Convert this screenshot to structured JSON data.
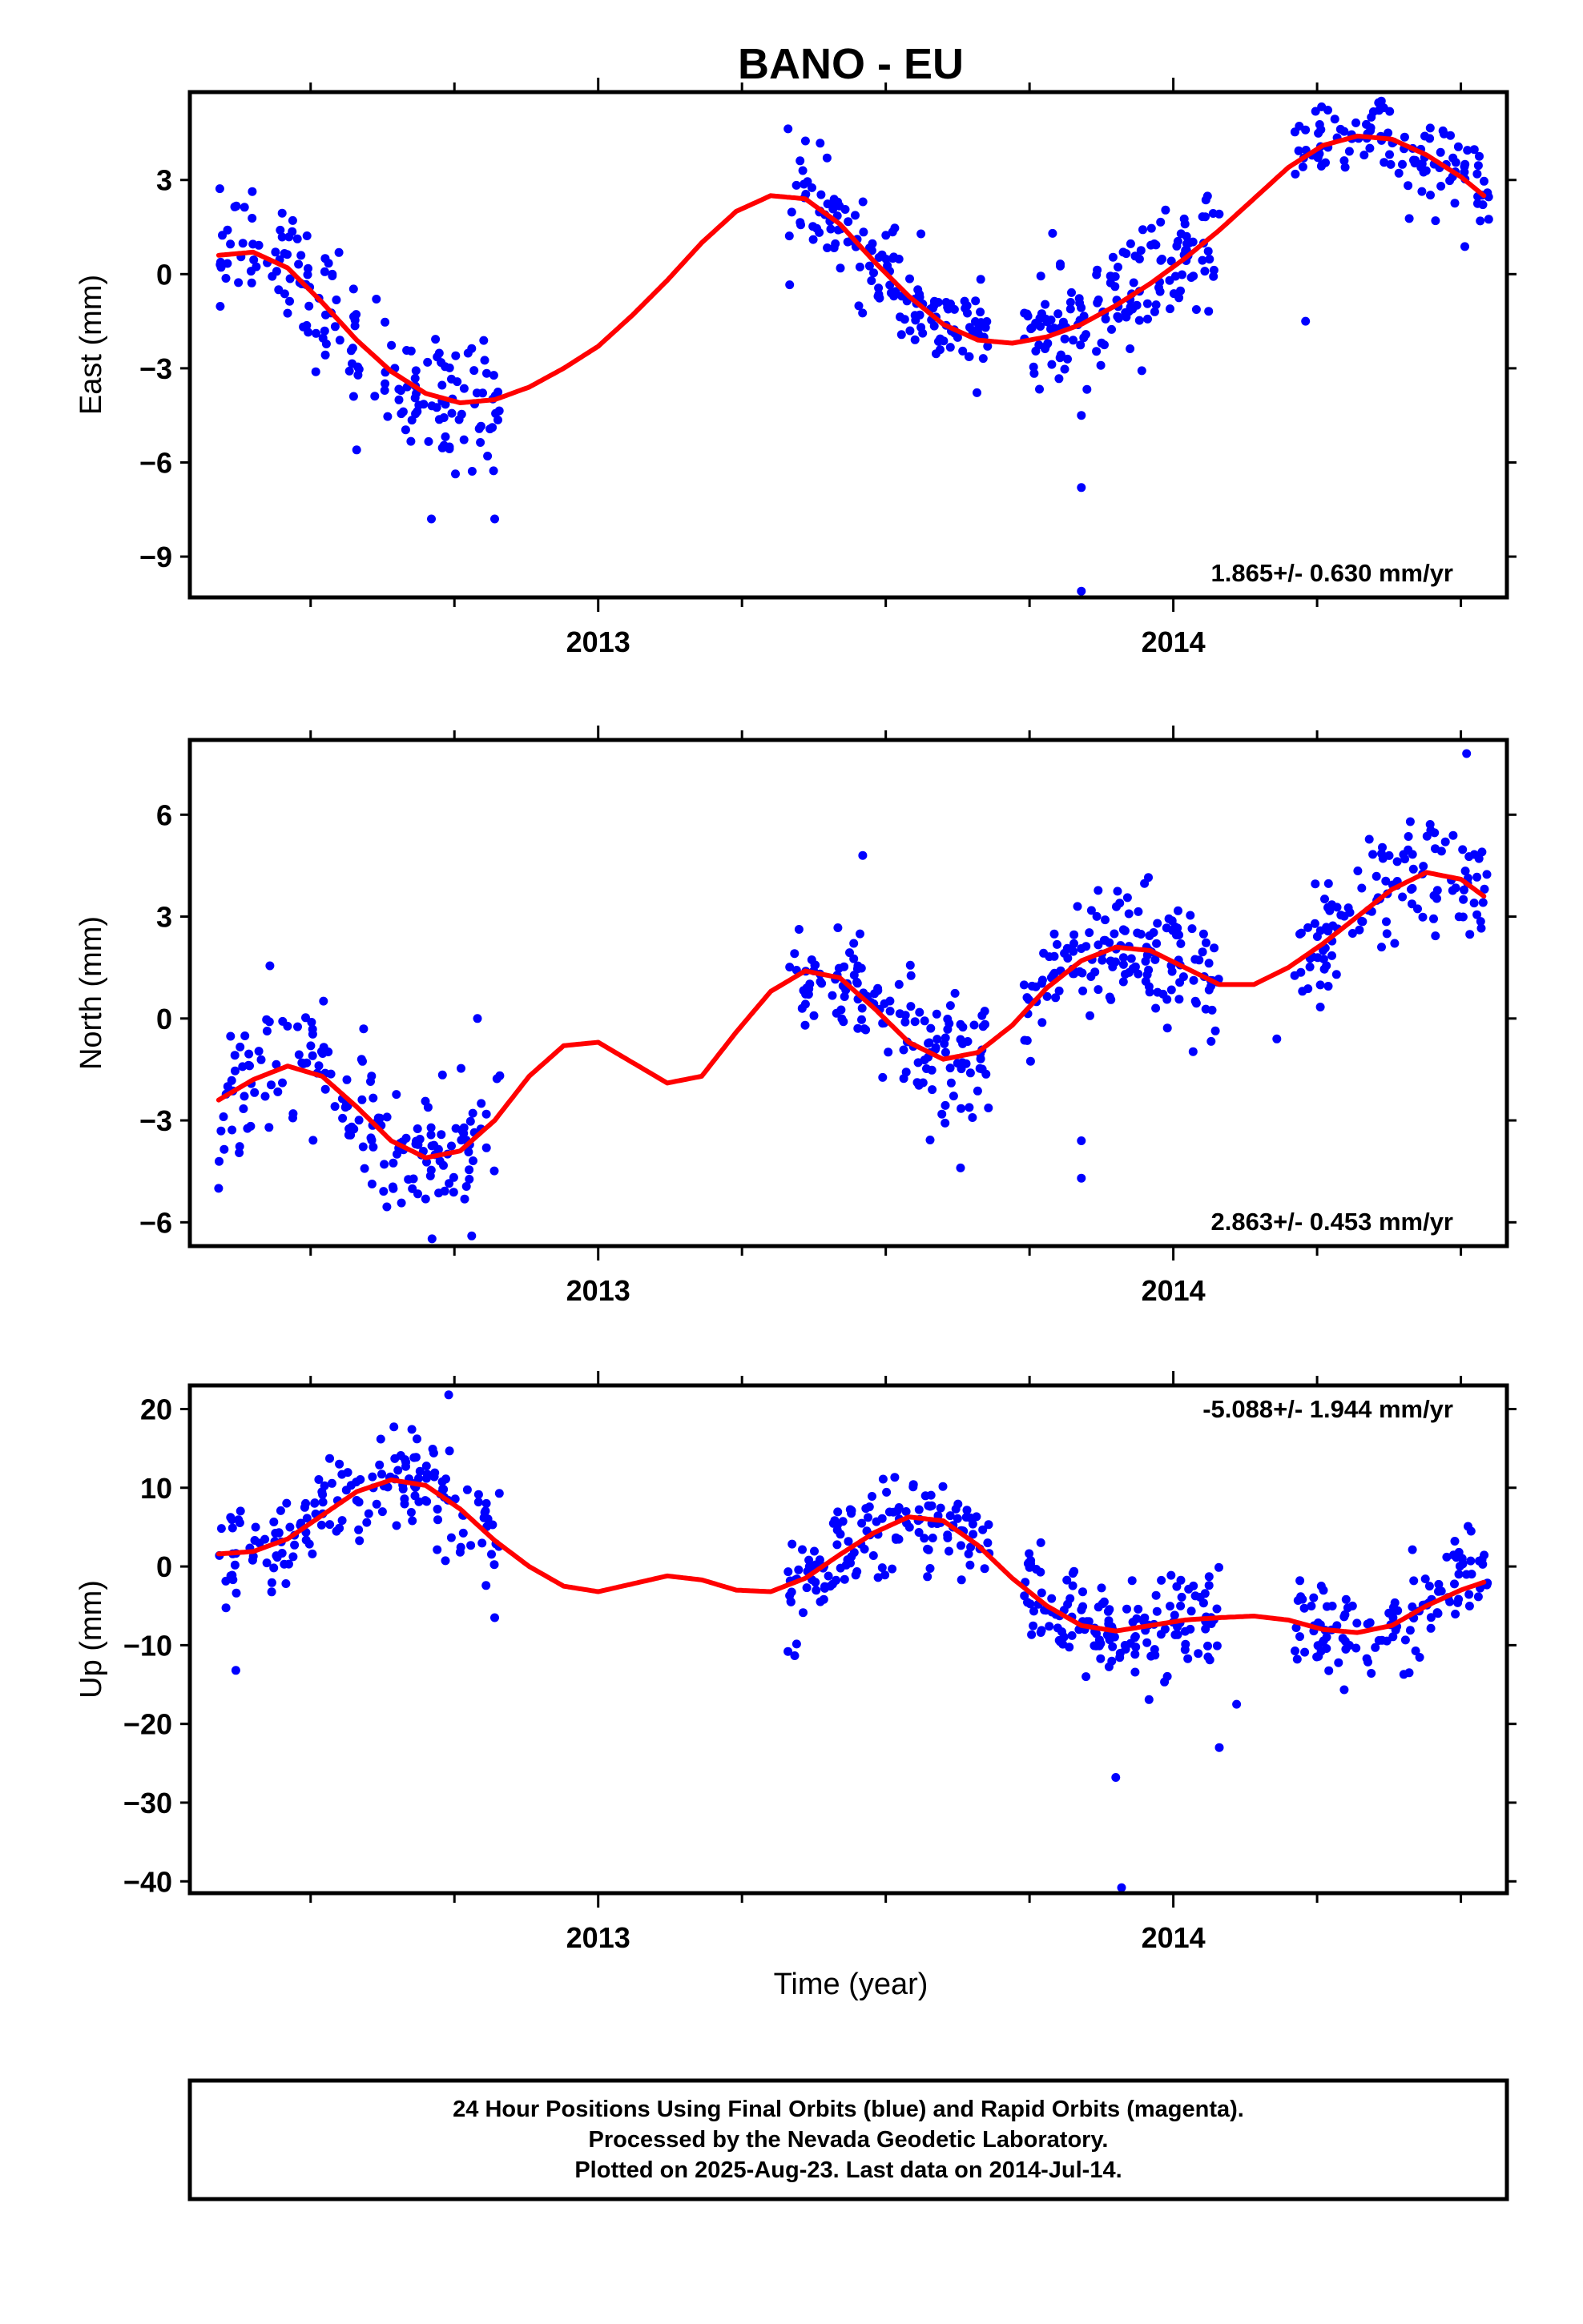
{
  "title": "BANO - EU",
  "xlabel": "Time (year)",
  "footer": {
    "line1": "24 Hour Positions Using Final Orbits (blue) and Rapid Orbits (magenta).",
    "line2": "Processed by the Nevada Geodetic Laboratory.",
    "line3": "Plotted on 2025-Aug-23. Last data on 2014-Jul-14."
  },
  "colors": {
    "points": "#0000ff",
    "fit": "#ff0000",
    "frame": "#000000"
  },
  "chart_data": [
    {
      "type": "scatter",
      "ylabel": "East (mm)",
      "rate_label": "1.865+/- 0.630 mm/yr",
      "xlim": [
        2012.29,
        2014.58
      ],
      "ylim": [
        -10.3,
        5.8
      ],
      "yticks": [
        3,
        0,
        -3,
        -6,
        -9
      ],
      "ytick_labels": [
        "3",
        "0",
        "−3",
        "−6",
        "−9"
      ],
      "xticks": [
        2013,
        2014
      ],
      "xtick_labels": [
        "2013",
        "2014"
      ],
      "fit": {
        "x": [
          2012.34,
          2012.4,
          2012.46,
          2012.52,
          2012.58,
          2012.64,
          2012.7,
          2012.76,
          2012.82,
          2012.88,
          2012.94,
          2013.0,
          2013.06,
          2013.12,
          2013.18,
          2013.24,
          2013.3,
          2013.36,
          2013.42,
          2013.48,
          2013.54,
          2013.6,
          2013.66,
          2013.72,
          2013.78,
          2013.84,
          2013.9,
          2013.96,
          2014.02,
          2014.08,
          2014.14,
          2014.2,
          2014.26,
          2014.32,
          2014.38,
          2014.44,
          2014.5,
          2014.54
        ],
        "y": [
          0.6,
          0.7,
          0.2,
          -0.9,
          -2.1,
          -3.1,
          -3.8,
          -4.1,
          -4.0,
          -3.6,
          -3.0,
          -2.3,
          -1.3,
          -0.2,
          1.0,
          2.0,
          2.5,
          2.4,
          1.6,
          0.4,
          -0.7,
          -1.6,
          -2.1,
          -2.2,
          -2.0,
          -1.6,
          -1.0,
          -0.3,
          0.5,
          1.4,
          2.4,
          3.4,
          4.1,
          4.4,
          4.3,
          3.8,
          3.1,
          2.5
        ]
      },
      "segments": [
        {
          "x0": 2012.34,
          "x1": 2012.83,
          "amp": 1.1,
          "noise": 1.0,
          "n": 170
        },
        {
          "x0": 2013.33,
          "x1": 2013.58,
          "amp": 0.8,
          "noise": 0.8,
          "n": 100
        },
        {
          "x0": 2013.58,
          "x1": 2013.68,
          "amp": 0.8,
          "noise": 0.7,
          "n": 45
        },
        {
          "x0": 2013.74,
          "x1": 2014.08,
          "amp": 1.0,
          "noise": 0.9,
          "n": 150
        },
        {
          "x0": 2014.21,
          "x1": 2014.55,
          "amp": 0.9,
          "noise": 0.8,
          "n": 120
        }
      ],
      "outliers": [
        [
          2012.58,
          -5.6
        ],
        [
          2012.71,
          -7.8
        ],
        [
          2012.82,
          -7.8
        ],
        [
          2013.84,
          -6.8
        ],
        [
          2013.84,
          -10.1
        ],
        [
          2013.84,
          -4.5
        ],
        [
          2014.23,
          -1.5
        ],
        [
          2013.79,
          1.3
        ]
      ]
    },
    {
      "type": "scatter",
      "ylabel": "North (mm)",
      "rate_label": "2.863+/- 0.453 mm/yr",
      "xlim": [
        2012.29,
        2014.58
      ],
      "ylim": [
        -6.7,
        8.2
      ],
      "yticks": [
        6,
        3,
        0,
        -3,
        -6
      ],
      "ytick_labels": [
        "6",
        "3",
        "0",
        "−3",
        "−6"
      ],
      "xticks": [
        2013,
        2014
      ],
      "xtick_labels": [
        "2013",
        "2014"
      ],
      "fit": {
        "x": [
          2012.34,
          2012.4,
          2012.46,
          2012.52,
          2012.58,
          2012.64,
          2012.7,
          2012.76,
          2012.82,
          2012.88,
          2012.94,
          2013.0,
          2013.06,
          2013.12,
          2013.18,
          2013.24,
          2013.3,
          2013.36,
          2013.42,
          2013.48,
          2013.54,
          2013.6,
          2013.66,
          2013.72,
          2013.78,
          2013.84,
          2013.9,
          2013.96,
          2014.02,
          2014.08,
          2014.14,
          2014.2,
          2014.26,
          2014.32,
          2014.38,
          2014.44,
          2014.5,
          2014.54
        ],
        "y": [
          -2.4,
          -1.8,
          -1.4,
          -1.7,
          -2.6,
          -3.6,
          -4.1,
          -3.9,
          -3.0,
          -1.7,
          -0.8,
          -0.7,
          -1.3,
          -1.9,
          -1.7,
          -0.4,
          0.8,
          1.4,
          1.2,
          0.3,
          -0.7,
          -1.2,
          -1.0,
          -0.2,
          0.9,
          1.7,
          2.1,
          2.0,
          1.5,
          1.0,
          1.0,
          1.5,
          2.2,
          3.0,
          3.8,
          4.3,
          4.1,
          3.6
        ]
      },
      "segments": [
        {
          "x0": 2012.34,
          "x1": 2012.83,
          "amp": 0.0,
          "noise": 1.0,
          "n": 170
        },
        {
          "x0": 2013.33,
          "x1": 2013.68,
          "amp": 0.0,
          "noise": 0.9,
          "n": 140
        },
        {
          "x0": 2013.74,
          "x1": 2014.08,
          "amp": 0.0,
          "noise": 0.9,
          "n": 150
        },
        {
          "x0": 2014.21,
          "x1": 2014.55,
          "amp": 0.0,
          "noise": 0.9,
          "n": 120
        }
      ],
      "outliers": [
        [
          2012.34,
          -5.0
        ],
        [
          2012.78,
          -6.4
        ],
        [
          2013.46,
          4.8
        ],
        [
          2013.63,
          -4.4
        ],
        [
          2013.84,
          -3.6
        ],
        [
          2013.84,
          -4.7
        ],
        [
          2014.51,
          7.8
        ],
        [
          2014.18,
          -0.6
        ],
        [
          2012.79,
          0.0
        ]
      ]
    },
    {
      "type": "scatter",
      "ylabel": "Up (mm)",
      "rate_label": "-5.088+/- 1.944 mm/yr",
      "xlim": [
        2012.29,
        2014.58
      ],
      "ylim": [
        -41.5,
        23.0
      ],
      "yticks": [
        20,
        10,
        0,
        -10,
        -20,
        -30,
        -40
      ],
      "ytick_labels": [
        "20",
        "10",
        "0",
        "−10",
        "−20",
        "−30",
        "−40"
      ],
      "xticks": [
        2013,
        2014
      ],
      "xtick_labels": [
        "2013",
        "2014"
      ],
      "fit": {
        "x": [
          2012.34,
          2012.4,
          2012.46,
          2012.52,
          2012.58,
          2012.64,
          2012.7,
          2012.76,
          2012.82,
          2012.88,
          2012.94,
          2013.0,
          2013.06,
          2013.12,
          2013.18,
          2013.24,
          2013.3,
          2013.36,
          2013.42,
          2013.48,
          2013.54,
          2013.6,
          2013.66,
          2013.72,
          2013.78,
          2013.84,
          2013.9,
          2013.96,
          2014.02,
          2014.08,
          2014.14,
          2014.2,
          2014.26,
          2014.32,
          2014.38,
          2014.44,
          2014.5,
          2014.54
        ],
        "y": [
          1.6,
          1.9,
          3.5,
          6.5,
          9.5,
          11.0,
          10.3,
          7.3,
          3.3,
          0.0,
          -2.5,
          -3.2,
          -2.2,
          -1.2,
          -1.7,
          -3.0,
          -3.2,
          -1.5,
          1.5,
          4.3,
          6.3,
          5.8,
          2.7,
          -1.5,
          -5.0,
          -7.5,
          -8.2,
          -7.5,
          -6.8,
          -6.5,
          -6.3,
          -6.8,
          -8.0,
          -8.4,
          -7.5,
          -5.0,
          -3.0,
          -2.0
        ]
      },
      "segments": [
        {
          "x0": 2012.34,
          "x1": 2012.83,
          "amp": 0.0,
          "noise": 3.0,
          "n": 170
        },
        {
          "x0": 2013.33,
          "x1": 2013.68,
          "amp": 0.0,
          "noise": 2.8,
          "n": 140
        },
        {
          "x0": 2013.74,
          "x1": 2014.08,
          "amp": 0.0,
          "noise": 3.2,
          "n": 150
        },
        {
          "x0": 2014.21,
          "x1": 2014.55,
          "amp": 0.0,
          "noise": 3.0,
          "n": 120
        }
      ],
      "outliers": [
        [
          2012.37,
          -13.2
        ],
        [
          2012.74,
          21.8
        ],
        [
          2013.9,
          -26.8
        ],
        [
          2013.91,
          -40.8
        ],
        [
          2014.08,
          -23.0
        ],
        [
          2012.82,
          -6.5
        ],
        [
          2013.33,
          -10.8
        ],
        [
          2014.11,
          -17.5
        ],
        [
          2014.41,
          -13.5
        ]
      ]
    }
  ]
}
